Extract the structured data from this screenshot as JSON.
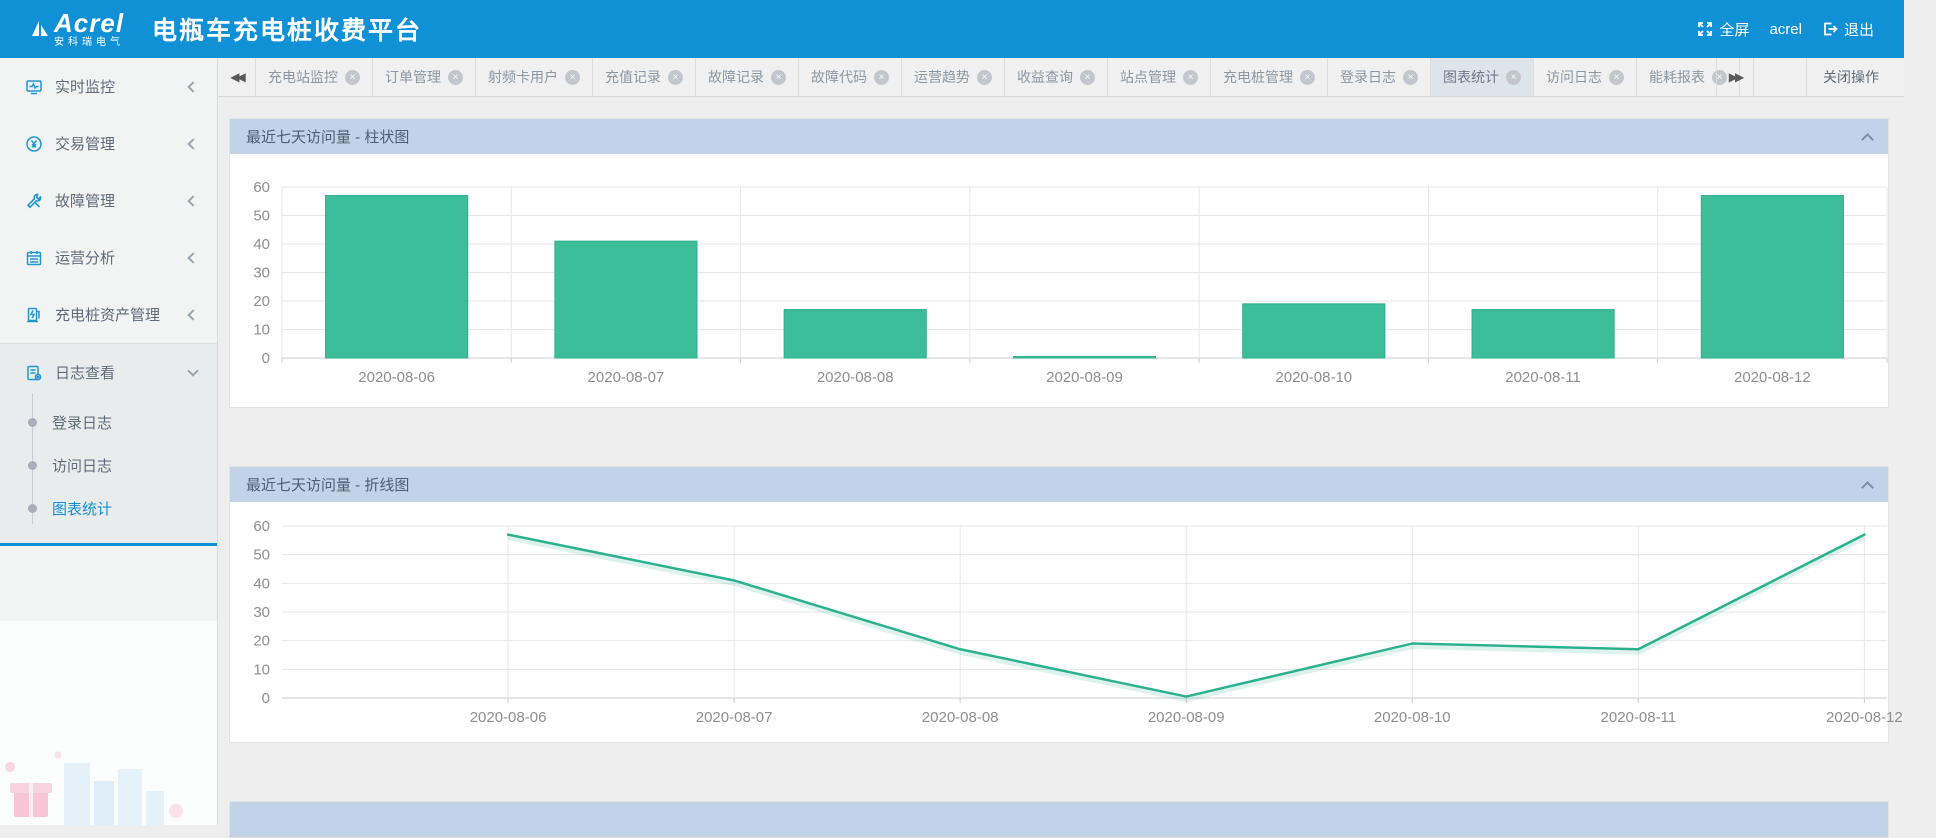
{
  "header": {
    "logo_text": "Acrel",
    "logo_subtext": "安科瑞电气",
    "title": "电瓶车充电桩收费平台",
    "fullscreen_label": "全屏",
    "username": "acrel",
    "logout_label": "退出"
  },
  "sidebar": {
    "items": [
      {
        "label": "实时监控",
        "icon": "monitor-icon",
        "expanded": false
      },
      {
        "label": "交易管理",
        "icon": "transaction-icon",
        "expanded": false
      },
      {
        "label": "故障管理",
        "icon": "fault-tools-icon",
        "expanded": false
      },
      {
        "label": "运营分析",
        "icon": "calendar-icon",
        "expanded": false
      },
      {
        "label": "充电桩资产管理",
        "icon": "charging-pile-icon",
        "expanded": false
      },
      {
        "label": "日志查看",
        "icon": "log-gear-icon",
        "expanded": true
      }
    ],
    "submenu": [
      {
        "label": "登录日志",
        "active": false
      },
      {
        "label": "访问日志",
        "active": false
      },
      {
        "label": "图表统计",
        "active": true
      }
    ]
  },
  "tabbar": {
    "tabs": [
      {
        "label": "充电站监控",
        "active": false
      },
      {
        "label": "订单管理",
        "active": false
      },
      {
        "label": "射频卡用户",
        "active": false
      },
      {
        "label": "充值记录",
        "active": false
      },
      {
        "label": "故障记录",
        "active": false
      },
      {
        "label": "故障代码",
        "active": false
      },
      {
        "label": "运营趋势",
        "active": false
      },
      {
        "label": "收益查询",
        "active": false
      },
      {
        "label": "站点管理",
        "active": false
      },
      {
        "label": "充电桩管理",
        "active": false
      },
      {
        "label": "登录日志",
        "active": false
      },
      {
        "label": "图表统计",
        "active": true
      },
      {
        "label": "访问日志",
        "active": false
      },
      {
        "label": "能耗报表",
        "active": false
      }
    ],
    "close_ops_label": "关闭操作"
  },
  "panels": [
    {
      "title": "最近七天访问量 - 柱状图"
    },
    {
      "title": "最近七天访问量 - 折线图"
    },
    {
      "title": ""
    }
  ],
  "colors": {
    "accent_blue": "#1191d5",
    "panel_header_bg": "#c3d3e7",
    "chart_green": "#3ebd9b",
    "chart_green_border": "#2fae8c",
    "line_green": "#2cb18e"
  },
  "chart_data": [
    {
      "type": "bar",
      "title": "最近七天访问量 - 柱状图",
      "categories": [
        "2020-08-06",
        "2020-08-07",
        "2020-08-08",
        "2020-08-09",
        "2020-08-10",
        "2020-08-11",
        "2020-08-12"
      ],
      "values": [
        57,
        41,
        17,
        0.5,
        19,
        17,
        57
      ],
      "xlabel": "",
      "ylabel": "",
      "ylim": [
        0,
        60
      ],
      "ytick_step": 10,
      "grid": true,
      "legend": "none",
      "color": "#3ebd9b",
      "border_color": "#2fae8c"
    },
    {
      "type": "line",
      "title": "最近七天访问量 - 折线图",
      "categories": [
        "2020-08-06",
        "2020-08-07",
        "2020-08-08",
        "2020-08-09",
        "2020-08-10",
        "2020-08-11",
        "2020-08-12"
      ],
      "values": [
        57,
        41,
        17,
        0.5,
        19,
        17,
        57
      ],
      "xlabel": "",
      "ylabel": "",
      "ylim": [
        0,
        60
      ],
      "ytick_step": 10,
      "grid": true,
      "legend": "none",
      "color": "#2cb18e"
    }
  ]
}
